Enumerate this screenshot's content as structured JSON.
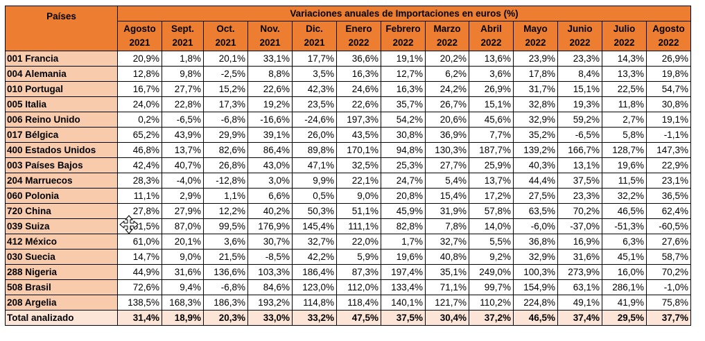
{
  "table": {
    "title": "Variaciones anuales de Importaciones en euros  (%)",
    "country_header": "Países",
    "months": [
      {
        "month": "Agosto",
        "year": "2021"
      },
      {
        "month": "Sept.",
        "year": "2021"
      },
      {
        "month": "Oct.",
        "year": "2021"
      },
      {
        "month": "Nov.",
        "year": "2021"
      },
      {
        "month": "Dic.",
        "year": "2021"
      },
      {
        "month": "Enero",
        "year": "2022"
      },
      {
        "month": "Febrero",
        "year": "2022"
      },
      {
        "month": "Marzo",
        "year": "2022"
      },
      {
        "month": "Abril",
        "year": "2022"
      },
      {
        "month": "Mayo",
        "year": "2022"
      },
      {
        "month": "Junio",
        "year": "2022"
      },
      {
        "month": "Julio",
        "year": "2022"
      },
      {
        "month": "Agosto",
        "year": "2022"
      }
    ],
    "rows": [
      {
        "country": "001 Francia",
        "values": [
          "20,9%",
          "1,8%",
          "20,1%",
          "33,1%",
          "17,7%",
          "36,6%",
          "19,1%",
          "20,2%",
          "13,6%",
          "23,9%",
          "23,3%",
          "14,3%",
          "26,9%"
        ]
      },
      {
        "country": "004 Alemania",
        "values": [
          "12,8%",
          "9,8%",
          "-2,5%",
          "8,8%",
          "3,5%",
          "16,3%",
          "12,7%",
          "6,2%",
          "3,6%",
          "17,8%",
          "8,4%",
          "13,3%",
          "19,8%"
        ]
      },
      {
        "country": "010 Portugal",
        "values": [
          "16,7%",
          "27,7%",
          "15,2%",
          "22,6%",
          "42,3%",
          "24,6%",
          "16,3%",
          "24,2%",
          "26,9%",
          "31,7%",
          "15,1%",
          "22,5%",
          "54,7%"
        ]
      },
      {
        "country": "005 Italia",
        "values": [
          "24,0%",
          "22,8%",
          "17,3%",
          "19,2%",
          "23,5%",
          "22,6%",
          "35,7%",
          "26,7%",
          "15,1%",
          "32,8%",
          "19,3%",
          "11,8%",
          "30,8%"
        ]
      },
      {
        "country": "006 Reino Unido",
        "values": [
          "0,2%",
          "-6,5%",
          "-6,8%",
          "-16,6%",
          "-24,6%",
          "197,3%",
          "54,2%",
          "20,6%",
          "45,6%",
          "32,9%",
          "59,2%",
          "2,7%",
          "19,1%"
        ]
      },
      {
        "country": "017 Bélgica",
        "values": [
          "65,2%",
          "43,9%",
          "29,9%",
          "39,1%",
          "26,0%",
          "43,5%",
          "30,8%",
          "36,9%",
          "7,7%",
          "35,2%",
          "-6,5%",
          "5,8%",
          "-1,1%"
        ]
      },
      {
        "country": "400 Estados Unidos",
        "values": [
          "46,8%",
          "13,7%",
          "82,6%",
          "86,4%",
          "89,8%",
          "170,1%",
          "94,8%",
          "130,3%",
          "187,7%",
          "139,2%",
          "166,7%",
          "128,7%",
          "147,3%"
        ]
      },
      {
        "country": "003 Países Bajos",
        "values": [
          "42,4%",
          "40,7%",
          "26,8%",
          "43,0%",
          "47,1%",
          "32,5%",
          "25,3%",
          "27,7%",
          "25,9%",
          "40,3%",
          "13,1%",
          "19,6%",
          "22,9%"
        ]
      },
      {
        "country": "204 Marruecos",
        "values": [
          "28,3%",
          "-4,0%",
          "-12,8%",
          "3,0%",
          "9,9%",
          "22,1%",
          "24,7%",
          "5,4%",
          "13,7%",
          "44,4%",
          "37,5%",
          "11,5%",
          "23,1%"
        ]
      },
      {
        "country": "060 Polonia",
        "values": [
          "11,1%",
          "2,9%",
          "1,1%",
          "6,6%",
          "0,5%",
          "9,0%",
          "20,8%",
          "15,4%",
          "17,2%",
          "27,5%",
          "23,3%",
          "32,2%",
          "36,5%"
        ]
      },
      {
        "country": "720 China",
        "values": [
          "27,8%",
          "27,9%",
          "12,2%",
          "40,2%",
          "50,3%",
          "51,1%",
          "45,9%",
          "31,9%",
          "57,8%",
          "63,5%",
          "70,2%",
          "46,5%",
          "62,4%"
        ]
      },
      {
        "country": "039 Suiza",
        "values": [
          "151,5%",
          "87,0%",
          "99,5%",
          "176,9%",
          "145,4%",
          "111,1%",
          "82,8%",
          "7,8%",
          "14,0%",
          "-6,0%",
          "-37,0%",
          "-51,3%",
          "-60,5%"
        ]
      },
      {
        "country": "412 México",
        "values": [
          "61,0%",
          "20,1%",
          "3,6%",
          "30,7%",
          "32,7%",
          "22,0%",
          "1,7%",
          "32,7%",
          "5,5%",
          "36,8%",
          "16,9%",
          "6,3%",
          "27,6%"
        ]
      },
      {
        "country": "030 Suecia",
        "values": [
          "14,7%",
          "9,0%",
          "21,5%",
          "-8,5%",
          "42,2%",
          "5,9%",
          "19,6%",
          "40,8%",
          "9,2%",
          "32,9%",
          "31,6%",
          "45,1%",
          "58,7%"
        ]
      },
      {
        "country": "288 Nigeria",
        "values": [
          "44,9%",
          "31,6%",
          "136,6%",
          "103,3%",
          "186,4%",
          "87,3%",
          "197,4%",
          "35,1%",
          "249,0%",
          "100,3%",
          "273,9%",
          "16,0%",
          "70,2%"
        ]
      },
      {
        "country": "508 Brasil",
        "values": [
          "72,6%",
          "9,4%",
          "-6,8%",
          "84,6%",
          "123,0%",
          "112,0%",
          "133,4%",
          "71,1%",
          "99,7%",
          "154,9%",
          "63,1%",
          "286,1%",
          "-1,0%"
        ]
      },
      {
        "country": "208 Argelia",
        "values": [
          "138,5%",
          "168,3%",
          "186,3%",
          "193,2%",
          "114,8%",
          "118,4%",
          "140,1%",
          "121,7%",
          "110,2%",
          "224,8%",
          "49,1%",
          "41,9%",
          "75,8%"
        ]
      }
    ],
    "total": {
      "country": "Total analizado",
      "values": [
        "31,4%",
        "18,9%",
        "20,3%",
        "33,0%",
        "33,2%",
        "47,5%",
        "37,5%",
        "30,4%",
        "37,2%",
        "46,5%",
        "37,4%",
        "29,5%",
        "37,7%"
      ]
    }
  },
  "cursor": {
    "icon": "move-cursor-icon"
  }
}
